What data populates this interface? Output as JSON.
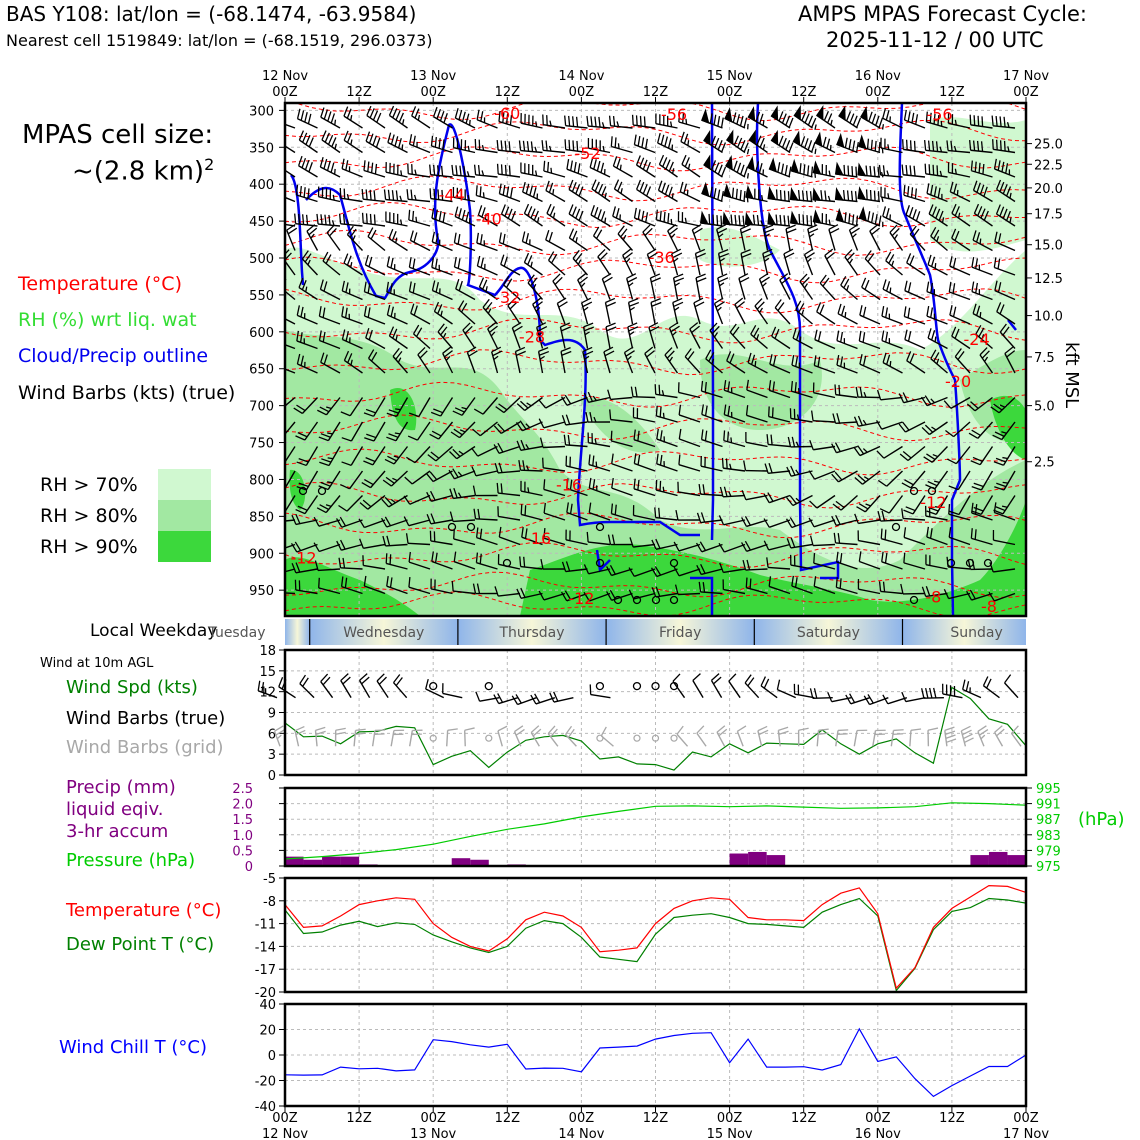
{
  "header": {
    "station": "BAS Y108: lat/lon = (-68.1474, -63.9584)",
    "nearest": "Nearest cell 1519849: lat/lon = (-68.1519, 296.0373)",
    "forecast_title": "AMPS MPAS Forecast Cycle:",
    "forecast_cycle": "2025-11-12 / 00 UTC"
  },
  "cell_size": {
    "line1": "MPAS cell size:",
    "line2": "~(2.8 km)",
    "sup": "2"
  },
  "legend_main": {
    "temperature": "Temperature (°C)",
    "rh": "RH (%) wrt liq. wat",
    "cloud": "Cloud/Precip outline",
    "wind": "Wind Barbs (kts) (true)"
  },
  "rh_legend": [
    "RH > 70%",
    "RH > 80%",
    "RH > 90%"
  ],
  "colors": {
    "rh70": "#d0f8d0",
    "rh80": "#a2e8a2",
    "rh90": "#3cd83c",
    "temp": "#ff0000",
    "cloud": "#0000ee",
    "rh_text": "#33dd33",
    "precip": "#800080",
    "pressure": "#00cc00",
    "dewpoint": "#008000",
    "windchill": "#0000ff",
    "windspd": "#008000",
    "barb_grid": "#a8a8a8"
  },
  "top_axis": {
    "labels": [
      {
        "t": 0,
        "l1": "12 Nov",
        "l2": "00Z"
      },
      {
        "t": 12,
        "l1": "",
        "l2": "12Z"
      },
      {
        "t": 24,
        "l1": "13 Nov",
        "l2": "00Z"
      },
      {
        "t": 36,
        "l1": "",
        "l2": "12Z"
      },
      {
        "t": 48,
        "l1": "14 Nov",
        "l2": "00Z"
      },
      {
        "t": 60,
        "l1": "",
        "l2": "12Z"
      },
      {
        "t": 72,
        "l1": "15 Nov",
        "l2": "00Z"
      },
      {
        "t": 84,
        "l1": "",
        "l2": "12Z"
      },
      {
        "t": 96,
        "l1": "16 Nov",
        "l2": "00Z"
      },
      {
        "t": 108,
        "l1": "",
        "l2": "12Z"
      },
      {
        "t": 120,
        "l1": "17 Nov",
        "l2": "00Z"
      }
    ]
  },
  "bottom_axis": {
    "labels": [
      {
        "t": 0,
        "l1": "00Z",
        "l2": "12 Nov"
      },
      {
        "t": 12,
        "l1": "12Z",
        "l2": ""
      },
      {
        "t": 24,
        "l1": "00Z",
        "l2": "13 Nov"
      },
      {
        "t": 36,
        "l1": "12Z",
        "l2": ""
      },
      {
        "t": 48,
        "l1": "00Z",
        "l2": "14 Nov"
      },
      {
        "t": 60,
        "l1": "12Z",
        "l2": ""
      },
      {
        "t": 72,
        "l1": "00Z",
        "l2": "15 Nov"
      },
      {
        "t": 84,
        "l1": "12Z",
        "l2": ""
      },
      {
        "t": 96,
        "l1": "00Z",
        "l2": "16 Nov"
      },
      {
        "t": 108,
        "l1": "12Z",
        "l2": ""
      },
      {
        "t": 120,
        "l1": "00Z",
        "l2": "17 Nov"
      }
    ]
  },
  "weekday": {
    "label": "Local Weekday",
    "days": [
      {
        "name": "Tuesday",
        "t": 0
      },
      {
        "name": "Wednesday",
        "t": 16
      },
      {
        "name": "Thursday",
        "t": 40
      },
      {
        "name": "Friday",
        "t": 64
      },
      {
        "name": "Saturday",
        "t": 88
      },
      {
        "name": "Sunday",
        "t": 112
      }
    ],
    "day_boundaries": [
      4,
      28,
      52,
      76,
      100
    ]
  },
  "chart_data": [
    {
      "type": "heatmap",
      "name": "cross-section",
      "x_hours": [
        0,
        120
      ],
      "pressure_ticks": [
        300,
        350,
        400,
        450,
        500,
        550,
        600,
        650,
        700,
        750,
        800,
        850,
        900,
        950
      ],
      "ylim_hpa": [
        290,
        985
      ],
      "kft_ticks": [
        25.0,
        22.5,
        20.0,
        17.5,
        15.0,
        12.5,
        10.0,
        7.5,
        5.0,
        2.5
      ],
      "kft_tick_hpa": [
        345,
        373,
        405,
        440,
        482,
        527,
        578,
        634,
        700,
        776
      ],
      "right_label": "kft MSL",
      "temperature_labels": [
        {
          "t": 36,
          "p": 305,
          "v": "-60"
        },
        {
          "t": 63,
          "p": 306,
          "v": "-56"
        },
        {
          "t": 106,
          "p": 306,
          "v": "-56"
        },
        {
          "t": 49,
          "p": 359,
          "v": "-52"
        },
        {
          "t": 27,
          "p": 415,
          "v": "-44"
        },
        {
          "t": 33,
          "p": 448,
          "v": "-40"
        },
        {
          "t": 61,
          "p": 500,
          "v": "-36"
        },
        {
          "t": 36,
          "p": 554,
          "v": "-32"
        },
        {
          "t": 40,
          "p": 608,
          "v": "-28"
        },
        {
          "t": 112,
          "p": 611,
          "v": "-24"
        },
        {
          "t": 109,
          "p": 668,
          "v": "-20"
        },
        {
          "t": 46,
          "p": 808,
          "v": "-16"
        },
        {
          "t": 41,
          "p": 881,
          "v": "-16"
        },
        {
          "t": 105,
          "p": 832,
          "v": "-12"
        },
        {
          "t": 3,
          "p": 907,
          "v": "-12"
        },
        {
          "t": 48,
          "p": 962,
          "v": "-12"
        },
        {
          "t": 105,
          "p": 960,
          "v": "-8"
        },
        {
          "t": 114,
          "p": 973,
          "v": "-8"
        }
      ],
      "rh_legend": [
        "RH > 70%",
        "RH > 80%",
        "RH > 90%"
      ]
    },
    {
      "type": "line",
      "name": "Wind at 10m AGL",
      "title": "Wind at 10m AGL",
      "series_labels": [
        "Wind Spd (kts)",
        "Wind Barbs (true)",
        "Wind Barbs (grid)"
      ],
      "x": [
        0,
        3,
        6,
        9,
        12,
        15,
        18,
        21,
        24,
        27,
        30,
        33,
        36,
        39,
        42,
        45,
        48,
        51,
        54,
        57,
        60,
        63,
        66,
        69,
        72,
        75,
        78,
        81,
        84,
        87,
        90,
        93,
        96,
        99,
        102,
        105,
        108,
        111,
        114,
        117,
        120
      ],
      "wind_spd": [
        7.5,
        5.5,
        5.6,
        4.5,
        6.2,
        6.3,
        7,
        6.8,
        1.5,
        2.7,
        3.5,
        1.1,
        3.3,
        5,
        5.5,
        5.7,
        4.9,
        2.3,
        2.6,
        1.6,
        1.5,
        0.7,
        3.3,
        2.6,
        4.5,
        3.2,
        4.6,
        4.5,
        4.4,
        6.5,
        4.5,
        3,
        4.5,
        5.2,
        3.2,
        1.7,
        12.6,
        11,
        8.1,
        7.3,
        4.2
      ],
      "calm_hours": [
        24,
        33,
        51,
        57,
        60,
        63
      ],
      "ylim": [
        0,
        18
      ],
      "yticks": [
        0,
        3,
        6,
        9,
        12,
        15,
        18
      ]
    },
    {
      "type": "bar",
      "name": "precip-pressure",
      "series_labels": [
        "Precip (mm)",
        "liquid eqiv.",
        "3-hr accum",
        "Pressure (hPa)"
      ],
      "precip_x": [
        0,
        3,
        6,
        9,
        12,
        27,
        30,
        36,
        72,
        75,
        78,
        111,
        114,
        117
      ],
      "precip_mm": [
        0.3,
        0.2,
        0.3,
        0.3,
        0.05,
        0.25,
        0.2,
        0.05,
        0.4,
        0.45,
        0.35,
        0.35,
        0.45,
        0.35
      ],
      "precip_ylim": [
        0,
        2.5
      ],
      "precip_ticks": [
        "0",
        "0.5",
        "1.0",
        "1.5",
        "2.0",
        "2.5"
      ],
      "pressure_x": [
        0,
        6,
        12,
        18,
        24,
        30,
        36,
        42,
        48,
        54,
        60,
        66,
        72,
        78,
        84,
        90,
        96,
        102,
        108,
        114,
        120
      ],
      "pressure_hpa": [
        976.8,
        977.4,
        978.2,
        979.2,
        980.6,
        982.6,
        984.4,
        985.8,
        987.6,
        989,
        990.3,
        990.4,
        990.2,
        990.4,
        990.1,
        989.8,
        989.9,
        990.2,
        991.2,
        991,
        990.6
      ],
      "pressure_ylim": [
        975,
        995
      ],
      "pressure_ticks": [
        "995",
        "991",
        "987",
        "983",
        "979",
        "975"
      ],
      "pressure_unit": "(hPa)"
    },
    {
      "type": "line",
      "name": "temperature-dewpoint",
      "series_labels": [
        "Temperature (°C)",
        "Dew Point T (°C)"
      ],
      "x": [
        0,
        3,
        6,
        9,
        12,
        15,
        18,
        21,
        24,
        27,
        30,
        33,
        36,
        39,
        42,
        45,
        48,
        51,
        54,
        57,
        60,
        63,
        66,
        69,
        72,
        75,
        78,
        81,
        84,
        87,
        90,
        93,
        96,
        99,
        102,
        105,
        108,
        111,
        114,
        117,
        120
      ],
      "temperature": [
        -8.5,
        -11.5,
        -11.3,
        -10,
        -8.5,
        -8,
        -7.6,
        -7.8,
        -11,
        -12.8,
        -14,
        -14.6,
        -13,
        -10.5,
        -9.5,
        -10,
        -11.5,
        -14.7,
        -14.5,
        -14.2,
        -11,
        -9,
        -8,
        -7.6,
        -7.8,
        -10.2,
        -10.5,
        -10.5,
        -10.6,
        -8.5,
        -7,
        -6.3,
        -9.7,
        -19.5,
        -16.8,
        -11.5,
        -9,
        -7.5,
        -6,
        -6.1,
        -6.9
      ],
      "dewpoint": [
        -9.2,
        -12.3,
        -12.1,
        -11.2,
        -10.7,
        -11.4,
        -10.9,
        -11.1,
        -12.5,
        -13.4,
        -14.2,
        -14.8,
        -14,
        -11.6,
        -10.6,
        -11,
        -12.8,
        -15.4,
        -15.7,
        -16,
        -12.4,
        -10.2,
        -9.9,
        -9.7,
        -10.2,
        -11,
        -11.1,
        -11.3,
        -11.5,
        -9.5,
        -8.5,
        -7.7,
        -10,
        -19.8,
        -16.9,
        -11.8,
        -9.4,
        -8.9,
        -7.7,
        -7.9,
        -8.3
      ],
      "ylim": [
        -20,
        -5
      ],
      "yticks": [
        -5,
        -8,
        -11,
        -14,
        -17,
        -20
      ]
    },
    {
      "type": "line",
      "name": "Wind Chill T",
      "series_labels": [
        "Wind Chill T (°C)"
      ],
      "x": [
        0,
        3,
        6,
        9,
        12,
        15,
        18,
        21,
        24,
        27,
        30,
        33,
        36,
        39,
        42,
        45,
        48,
        51,
        54,
        57,
        60,
        63,
        66,
        69,
        72,
        75,
        78,
        81,
        84,
        87,
        90,
        93,
        96,
        99,
        102,
        105,
        108,
        111,
        114,
        117,
        120
      ],
      "windchill": [
        -15.5,
        -15.8,
        -15.6,
        -9.5,
        -10.8,
        -10.4,
        -12.5,
        -11.7,
        12,
        10.5,
        8,
        6.2,
        8.4,
        -11,
        -10.3,
        -10.4,
        -13.2,
        5.5,
        6.2,
        7,
        12.5,
        15.3,
        17,
        17.5,
        -6,
        12.5,
        -9.5,
        -9.5,
        -9.2,
        -11.8,
        -7.5,
        20.5,
        -5,
        -1.5,
        -18.5,
        -32.5,
        -24,
        -16.5,
        -9,
        -9,
        0
      ],
      "ylim": [
        -40,
        40
      ],
      "yticks": [
        40,
        20,
        0,
        -20,
        -40
      ]
    }
  ]
}
